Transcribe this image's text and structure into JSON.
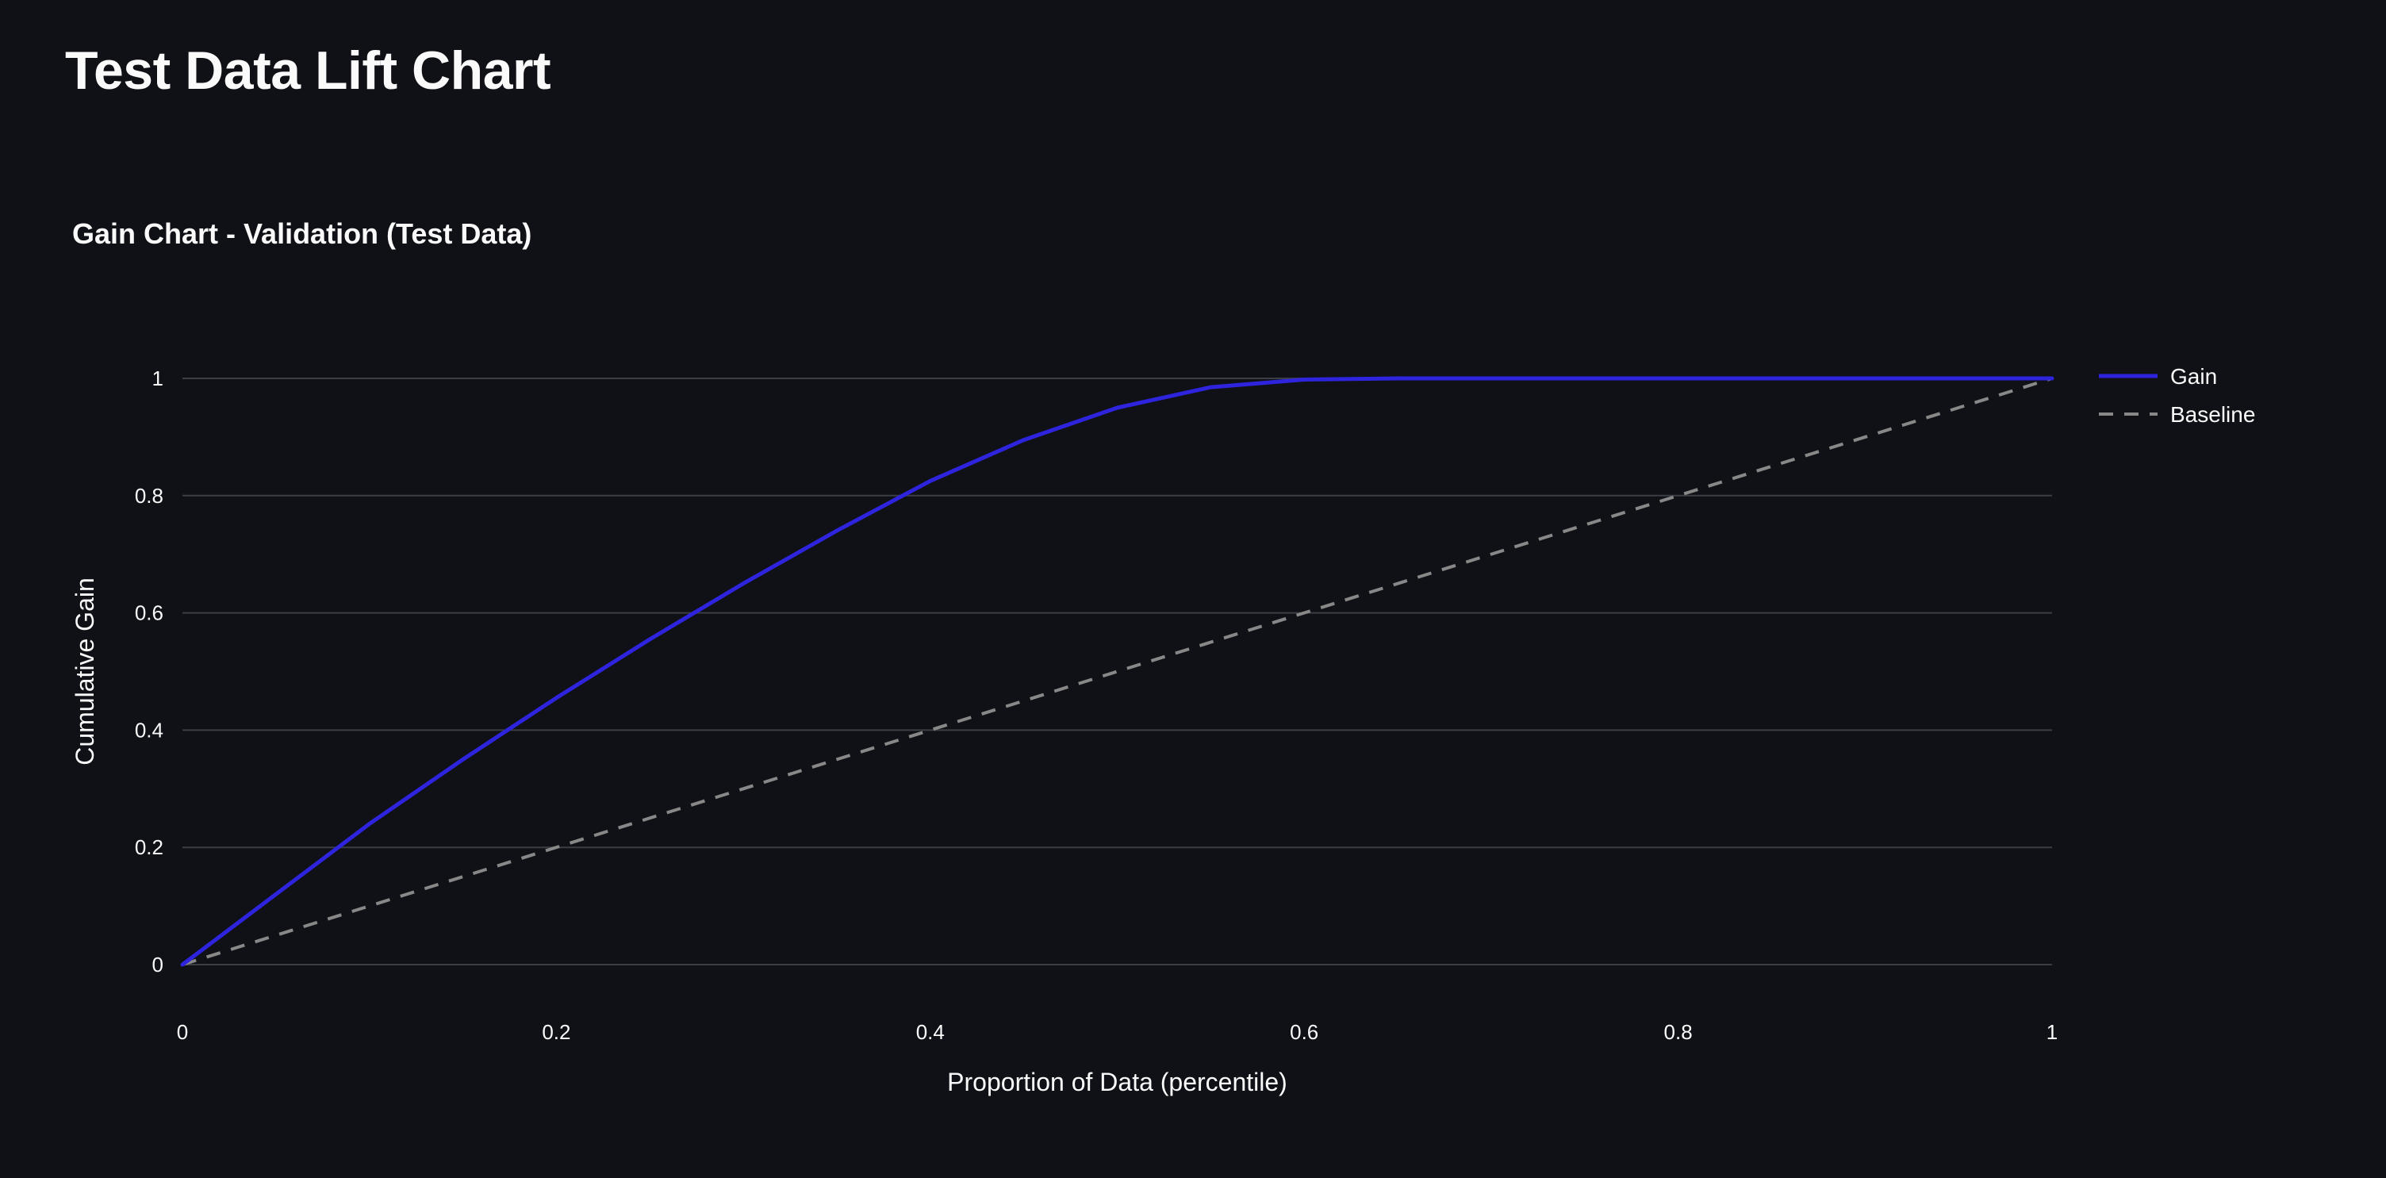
{
  "page": {
    "title": "Test Data Lift Chart"
  },
  "chart_data": {
    "type": "line",
    "title": "Gain Chart - Validation (Test Data)",
    "xlabel": "Proportion of Data (percentile)",
    "ylabel": "Cumulative Gain",
    "xlim": [
      0,
      1
    ],
    "ylim": [
      0,
      1
    ],
    "xticks": [
      0,
      0.2,
      0.4,
      0.6,
      0.8,
      1
    ],
    "yticks": [
      0,
      0.2,
      0.4,
      0.6,
      0.8,
      1
    ],
    "xtick_labels": [
      "0",
      "0.2",
      "0.4",
      "0.6",
      "0.8",
      "1"
    ],
    "ytick_labels": [
      "0",
      "0.2",
      "0.4",
      "0.6",
      "0.8",
      "1"
    ],
    "grid": "horizontal",
    "legend_position": "top-right",
    "series": [
      {
        "name": "Gain",
        "color": "#2f24de",
        "dash": "solid",
        "x": [
          0,
          0.05,
          0.1,
          0.15,
          0.2,
          0.25,
          0.3,
          0.35,
          0.4,
          0.45,
          0.5,
          0.55,
          0.6,
          0.65,
          0.7,
          0.8,
          0.9,
          1
        ],
        "y": [
          0,
          0.12,
          0.24,
          0.35,
          0.455,
          0.555,
          0.65,
          0.74,
          0.825,
          0.895,
          0.95,
          0.985,
          0.998,
          1,
          1,
          1,
          1,
          1
        ]
      },
      {
        "name": "Baseline",
        "color": "#888888",
        "dash": "dashed",
        "x": [
          0,
          1
        ],
        "y": [
          0,
          1
        ]
      }
    ]
  }
}
